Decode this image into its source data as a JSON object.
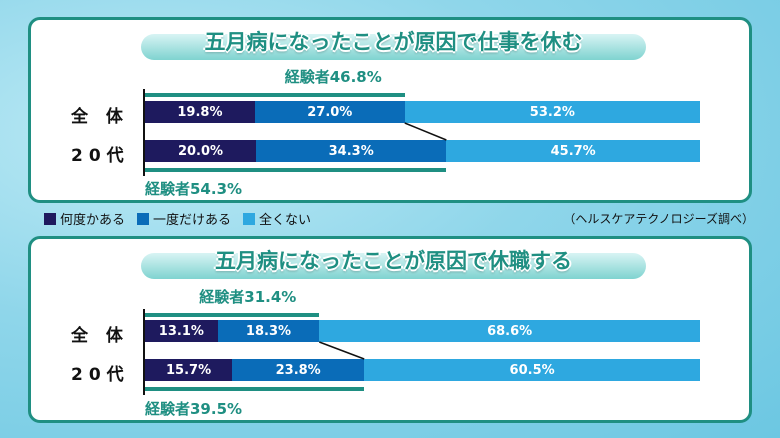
{
  "colors": {
    "often": "#1e1a5e",
    "once": "#0a6cb8",
    "never": "#2ea8e0",
    "accent": "#1f8f82"
  },
  "legend": [
    "何度かある",
    "一度だけある",
    "全くない"
  ],
  "source": "（ヘルスケアテクノロジーズ調べ）",
  "chart_data": [
    {
      "type": "bar",
      "stacked": true,
      "orientation": "horizontal",
      "title": "五月病になったことが原因で仕事を休む",
      "categories": [
        "全 体",
        "20代"
      ],
      "series": [
        {
          "name": "何度かある",
          "values": [
            19.8,
            20.0
          ]
        },
        {
          "name": "一度だけある",
          "values": [
            27.0,
            34.3
          ]
        },
        {
          "name": "全くない",
          "values": [
            53.2,
            45.7
          ]
        }
      ],
      "experience_labels": [
        "経験者46.8%",
        "経験者54.3%"
      ],
      "xlim": [
        0,
        100
      ]
    },
    {
      "type": "bar",
      "stacked": true,
      "orientation": "horizontal",
      "title": "五月病になったことが原因で休職する",
      "categories": [
        "全 体",
        "20代"
      ],
      "series": [
        {
          "name": "何度かある",
          "values": [
            13.1,
            15.7
          ]
        },
        {
          "name": "一度だけある",
          "values": [
            18.3,
            23.8
          ]
        },
        {
          "name": "全くない",
          "values": [
            68.6,
            60.5
          ]
        }
      ],
      "experience_labels": [
        "経験者31.4%",
        "経験者39.5%"
      ],
      "xlim": [
        0,
        100
      ]
    }
  ]
}
